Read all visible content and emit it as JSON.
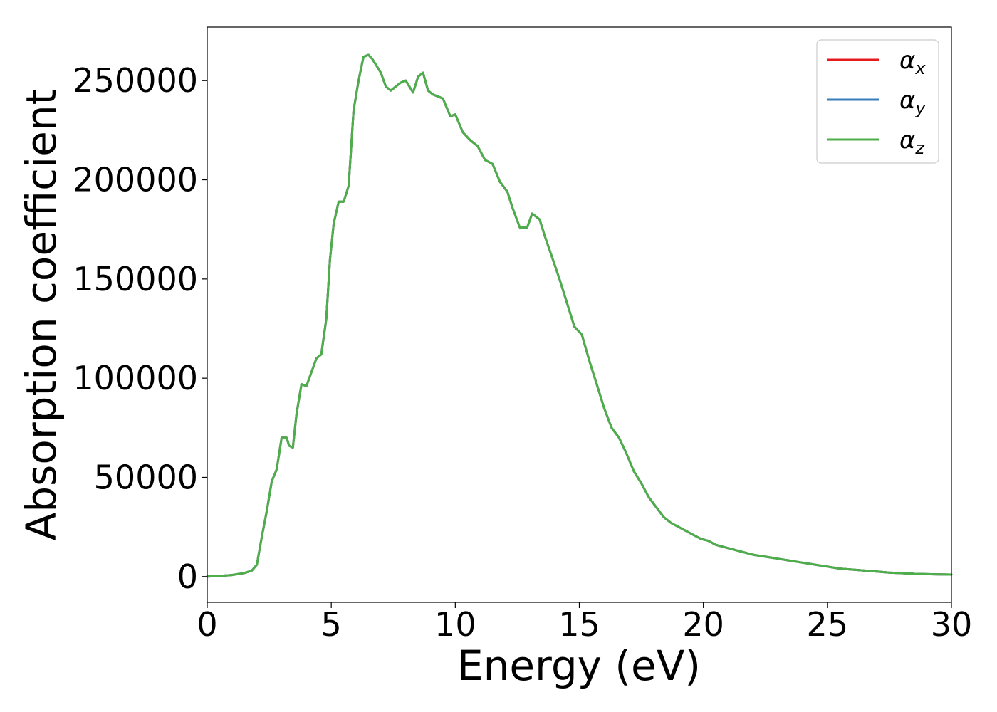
{
  "chart_data": {
    "type": "line",
    "xlabel": "Energy (eV)",
    "ylabel": "Absorption coefficient",
    "xlim": [
      0,
      30
    ],
    "ylim": [
      -13000,
      277000
    ],
    "xticks": [
      0,
      5,
      10,
      15,
      20,
      25,
      30
    ],
    "yticks": [
      0,
      50000,
      100000,
      150000,
      200000,
      250000
    ],
    "grid": false,
    "legend_position": "top-right",
    "x": [
      0,
      0.5,
      1.0,
      1.5,
      1.8,
      2.0,
      2.2,
      2.4,
      2.6,
      2.8,
      3.0,
      3.2,
      3.3,
      3.45,
      3.6,
      3.8,
      4.0,
      4.2,
      4.4,
      4.6,
      4.8,
      4.95,
      5.1,
      5.3,
      5.5,
      5.7,
      5.9,
      6.1,
      6.3,
      6.5,
      6.65,
      6.8,
      7.0,
      7.2,
      7.4,
      7.6,
      7.8,
      8.0,
      8.3,
      8.5,
      8.7,
      8.9,
      9.1,
      9.3,
      9.5,
      9.8,
      10.0,
      10.3,
      10.6,
      10.9,
      11.2,
      11.5,
      11.8,
      12.1,
      12.3,
      12.6,
      12.9,
      13.1,
      13.4,
      13.6,
      13.9,
      14.2,
      14.5,
      14.8,
      15.1,
      15.4,
      15.7,
      16.0,
      16.3,
      16.6,
      16.9,
      17.2,
      17.5,
      17.8,
      18.1,
      18.4,
      18.7,
      19.0,
      19.3,
      19.6,
      19.9,
      20.2,
      20.5,
      20.8,
      21.1,
      21.4,
      21.7,
      22.0,
      22.5,
      23.0,
      23.5,
      24.0,
      24.5,
      25.0,
      25.5,
      26.0,
      26.5,
      27.0,
      27.5,
      28.0,
      28.5,
      29.0,
      29.5,
      30.0
    ],
    "series": [
      {
        "name": "α_x",
        "color": "#e41a1c",
        "values": [
          0,
          300,
          800,
          1800,
          3000,
          6000,
          20000,
          33000,
          48000,
          54000,
          70000,
          70000,
          66000,
          65000,
          82000,
          97000,
          96000,
          103000,
          110000,
          112000,
          130000,
          160000,
          178000,
          189000,
          189000,
          197000,
          235000,
          250000,
          262000,
          263000,
          261000,
          258000,
          254000,
          247000,
          245000,
          247000,
          249000,
          250000,
          244000,
          252000,
          254000,
          245000,
          243000,
          242000,
          241000,
          232000,
          233000,
          224000,
          220000,
          217000,
          210000,
          208000,
          199000,
          194000,
          186000,
          176000,
          176000,
          183000,
          180000,
          172000,
          161000,
          150000,
          138000,
          126000,
          122000,
          109000,
          97000,
          85000,
          75000,
          70000,
          62000,
          53000,
          47000,
          40000,
          35000,
          30000,
          27000,
          25000,
          23000,
          21000,
          19000,
          18000,
          16000,
          15000,
          14000,
          13000,
          12000,
          11000,
          10000,
          9000,
          8000,
          7000,
          6000,
          5000,
          4000,
          3500,
          3000,
          2500,
          2000,
          1700,
          1400,
          1200,
          1100,
          1000
        ]
      },
      {
        "name": "α_y",
        "color": "#377eb8",
        "values": [
          0,
          300,
          800,
          1800,
          3000,
          6000,
          20000,
          33000,
          48000,
          54000,
          70000,
          70000,
          66000,
          65000,
          82000,
          97000,
          96000,
          103000,
          110000,
          112000,
          130000,
          160000,
          178000,
          189000,
          189000,
          197000,
          235000,
          250000,
          262000,
          263000,
          261000,
          258000,
          254000,
          247000,
          245000,
          247000,
          249000,
          250000,
          244000,
          252000,
          254000,
          245000,
          243000,
          242000,
          241000,
          232000,
          233000,
          224000,
          220000,
          217000,
          210000,
          208000,
          199000,
          194000,
          186000,
          176000,
          176000,
          183000,
          180000,
          172000,
          161000,
          150000,
          138000,
          126000,
          122000,
          109000,
          97000,
          85000,
          75000,
          70000,
          62000,
          53000,
          47000,
          40000,
          35000,
          30000,
          27000,
          25000,
          23000,
          21000,
          19000,
          18000,
          16000,
          15000,
          14000,
          13000,
          12000,
          11000,
          10000,
          9000,
          8000,
          7000,
          6000,
          5000,
          4000,
          3500,
          3000,
          2500,
          2000,
          1700,
          1400,
          1200,
          1100,
          1000
        ]
      },
      {
        "name": "α_z",
        "color": "#4daf4a",
        "values": [
          0,
          300,
          800,
          1800,
          3000,
          6000,
          20000,
          33000,
          48000,
          54000,
          70000,
          70000,
          66000,
          65000,
          82000,
          97000,
          96000,
          103000,
          110000,
          112000,
          130000,
          160000,
          178000,
          189000,
          189000,
          197000,
          235000,
          250000,
          262000,
          263000,
          261000,
          258000,
          254000,
          247000,
          245000,
          247000,
          249000,
          250000,
          244000,
          252000,
          254000,
          245000,
          243000,
          242000,
          241000,
          232000,
          233000,
          224000,
          220000,
          217000,
          210000,
          208000,
          199000,
          194000,
          186000,
          176000,
          176000,
          183000,
          180000,
          172000,
          161000,
          150000,
          138000,
          126000,
          122000,
          109000,
          97000,
          85000,
          75000,
          70000,
          62000,
          53000,
          47000,
          40000,
          35000,
          30000,
          27000,
          25000,
          23000,
          21000,
          19000,
          18000,
          16000,
          15000,
          14000,
          13000,
          12000,
          11000,
          10000,
          9000,
          8000,
          7000,
          6000,
          5000,
          4000,
          3500,
          3000,
          2500,
          2000,
          1700,
          1400,
          1200,
          1100,
          1000
        ]
      }
    ],
    "legend": [
      {
        "base": "α",
        "sub": "x"
      },
      {
        "base": "α",
        "sub": "y"
      },
      {
        "base": "α",
        "sub": "z"
      }
    ]
  }
}
